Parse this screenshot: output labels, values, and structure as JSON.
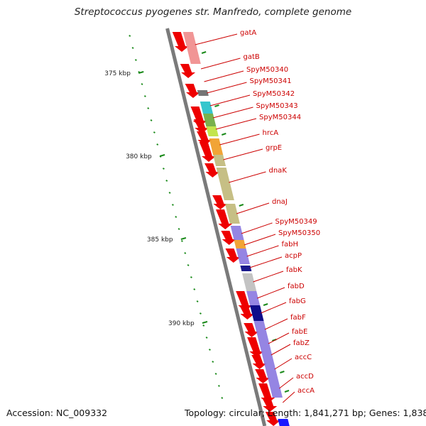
{
  "title": "Streptococcus pyogenes str. Manfredo, complete genome",
  "footer": {
    "accession": "Accession: NC_009332",
    "summary": "Topology: circular; Length: 1,841,271 bp; Genes: 1,838"
  },
  "colors": {
    "backbone": "#7a7a7a",
    "gene_arrow": "#ee0000",
    "label": "#cc0000",
    "tick": "#1a8a1a"
  },
  "scale_ticks": [
    "375 kbp",
    "380 kbp",
    "385 kbp",
    "390 kbp"
  ],
  "genes": [
    {
      "label": "gatA"
    },
    {
      "label": "gatB"
    },
    {
      "label": "SpyM50340"
    },
    {
      "label": "SpyM50341"
    },
    {
      "label": "SpyM50342"
    },
    {
      "label": "SpyM50343"
    },
    {
      "label": "SpyM50344"
    },
    {
      "label": "hrcA"
    },
    {
      "label": "grpE"
    },
    {
      "label": "dnaK"
    },
    {
      "label": "dnaJ"
    },
    {
      "label": "SpyM50349"
    },
    {
      "label": "SpyM50350"
    },
    {
      "label": "fabH"
    },
    {
      "label": "acpP"
    },
    {
      "label": "fabK"
    },
    {
      "label": "fabD"
    },
    {
      "label": "fabG"
    },
    {
      "label": "fabF"
    },
    {
      "label": "fabE"
    },
    {
      "label": "fabZ"
    },
    {
      "label": "accC"
    },
    {
      "label": "accD"
    },
    {
      "label": "accA"
    }
  ],
  "cog_colors": [
    "#f08a8a",
    "#666666",
    "#20c0c8",
    "#6aa83a",
    "#bde23a",
    "#f09a20",
    "#c0b878",
    "#8a78e0",
    "#000080",
    "#bdbdbd",
    "#0000ff"
  ]
}
